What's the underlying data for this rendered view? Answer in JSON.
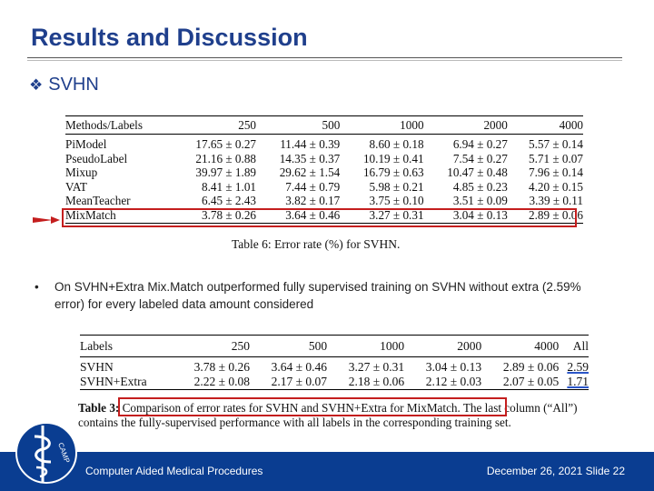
{
  "slide": {
    "title": "Results and Discussion",
    "section": "SVHN",
    "section_icon": "diamond-bullet-icon"
  },
  "table1": {
    "headers": [
      "Methods/Labels",
      "250",
      "500",
      "1000",
      "2000",
      "4000"
    ],
    "rows": [
      [
        "PiModel",
        "17.65 ± 0.27",
        "11.44 ± 0.39",
        "8.60 ± 0.18",
        "6.94 ± 0.27",
        "5.57 ± 0.14"
      ],
      [
        "PseudoLabel",
        "21.16 ± 0.88",
        "14.35 ± 0.37",
        "10.19 ± 0.41",
        "7.54 ± 0.27",
        "5.71 ± 0.07"
      ],
      [
        "Mixup",
        "39.97 ± 1.89",
        "29.62 ± 1.54",
        "16.79 ± 0.63",
        "10.47 ± 0.48",
        "7.96 ± 0.14"
      ],
      [
        "VAT",
        "8.41 ± 1.01",
        "7.44 ± 0.79",
        "5.98 ± 0.21",
        "4.85 ± 0.23",
        "4.20 ± 0.15"
      ],
      [
        "MeanTeacher",
        "6.45 ± 2.43",
        "3.82 ± 0.17",
        "3.75 ± 0.10",
        "3.51 ± 0.09",
        "3.39 ± 0.11"
      ],
      [
        "MixMatch",
        "3.78 ± 0.26",
        "3.64 ± 0.46",
        "3.27 ± 0.31",
        "3.04 ± 0.13",
        "2.89 ± 0.06"
      ]
    ],
    "caption": "Table 6: Error rate (%) for SVHN."
  },
  "bullet": {
    "text": "On SVHN+Extra Mix.Match outperformed fully supervised training on SVHN without extra (2.59% error) for every labeled data amount considered"
  },
  "table2": {
    "headers": [
      "Labels",
      "250",
      "500",
      "1000",
      "2000",
      "4000",
      "All"
    ],
    "rows": [
      [
        "SVHN",
        "3.78 ± 0.26",
        "3.64 ± 0.46",
        "3.27 ± 0.31",
        "3.04 ± 0.13",
        "2.89 ± 0.06",
        "2.59"
      ],
      [
        "SVHN+Extra",
        "2.22 ± 0.08",
        "2.17 ± 0.07",
        "2.18 ± 0.06",
        "2.12 ± 0.03",
        "2.07 ± 0.05",
        "1.71"
      ]
    ],
    "caption_label": "Table 3:",
    "caption_text": " Comparison of error rates for SVHN and SVHN+Extra for MixMatch. The last column (“All”) contains the fully-supervised performance with all labels in the corresponding training set."
  },
  "footer": {
    "left": "Computer Aided Medical Procedures",
    "right": "December 26, 2021  Slide 22",
    "logo_text": "CAMP"
  },
  "colors": {
    "title": "#1f3f8c",
    "footer_bg": "#0a3d91",
    "highlight": "#c41e1e",
    "underline": "#2b56c8"
  }
}
